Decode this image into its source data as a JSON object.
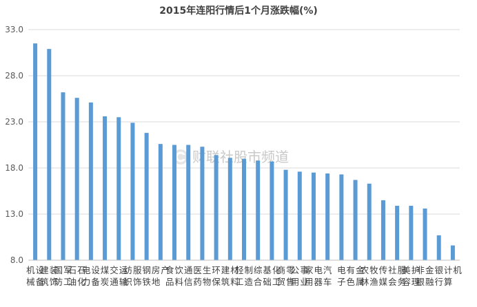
{
  "chart_data": {
    "type": "bar",
    "title": "2015年连阳行情后1个月涨跌幅(%)",
    "xlabel": "",
    "ylabel": "",
    "ylim": [
      8.0,
      33.0
    ],
    "yticks": [
      8.0,
      13.0,
      18.0,
      23.0,
      28.0,
      33.0
    ],
    "ytick_labels": [
      "8.0",
      "13.0",
      "18.0",
      "23.0",
      "28.0",
      "33.0"
    ],
    "grid": true,
    "legend": "none",
    "bar_color": "#5b9bd5",
    "categories": [
      "机械设备",
      "建筑装饰",
      "国防军工",
      "石油石化",
      "电力设备",
      "煤炭",
      "交通运输",
      "纺织服饰",
      "钢铁",
      "房地产",
      "食品饮料",
      "通信",
      "医药生物",
      "环保",
      "建筑材料",
      "轻工制造",
      "综合",
      "基础化工",
      "商贸零售",
      "公用事业",
      "家用电器",
      "汽车",
      "电子",
      "有色金属",
      "农林牧渔",
      "传媒",
      "社会服务",
      "美容护理",
      "非银金融",
      "银行",
      "计算机"
    ],
    "values": [
      31.5,
      30.9,
      26.2,
      25.6,
      25.1,
      23.6,
      23.5,
      22.9,
      21.8,
      20.6,
      20.5,
      20.5,
      20.3,
      19.4,
      19.1,
      19.0,
      18.8,
      18.7,
      17.8,
      17.6,
      17.5,
      17.4,
      17.3,
      16.7,
      16.3,
      14.5,
      13.9,
      13.9,
      13.6,
      10.7,
      9.6
    ]
  },
  "watermark": {
    "text": "财联社股市频道",
    "icon": "cls-logo-icon",
    "color": "#e2e2e2"
  }
}
